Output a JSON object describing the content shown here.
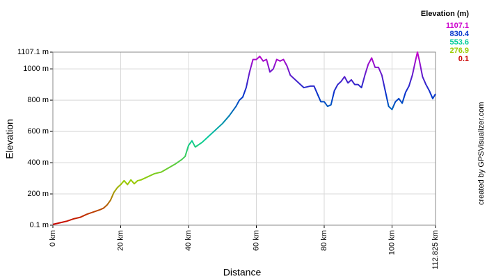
{
  "chart_data": {
    "type": "line",
    "xlabel": "Distance",
    "ylabel": "Elevation",
    "credit": "created by GPSVisualizer.com",
    "legend_title": "Elevation (m)",
    "legend": [
      {
        "value": 1107.1,
        "color": "#cc00cc"
      },
      {
        "value": 830.4,
        "color": "#0033cc"
      },
      {
        "value": 553.6,
        "color": "#00cc99"
      },
      {
        "value": 276.9,
        "color": "#99cc00"
      },
      {
        "value": 0.1,
        "color": "#cc0000"
      }
    ],
    "xlim": [
      0,
      112.825
    ],
    "ylim": [
      0.1,
      1107.1
    ],
    "xticks": [
      {
        "value": 0,
        "label": "0 km"
      },
      {
        "value": 20,
        "label": "20 km"
      },
      {
        "value": 40,
        "label": "40 km"
      },
      {
        "value": 60,
        "label": "60 km"
      },
      {
        "value": 80,
        "label": "80 km"
      },
      {
        "value": 100,
        "label": "100 km"
      },
      {
        "value": 112.825,
        "label": "112.825 km"
      }
    ],
    "yticks": [
      {
        "value": 0.1,
        "label": "0.1 m"
      },
      {
        "value": 200,
        "label": "200 m"
      },
      {
        "value": 400,
        "label": "400 m"
      },
      {
        "value": 600,
        "label": "600 m"
      },
      {
        "value": 800,
        "label": "800 m"
      },
      {
        "value": 1000,
        "label": "1000 m"
      },
      {
        "value": 1107.1,
        "label": "1107.1 m"
      }
    ],
    "grid": true,
    "x": [
      0,
      2,
      4,
      6,
      8,
      10,
      12,
      14,
      15,
      16,
      17,
      18,
      19,
      20,
      21,
      22,
      23,
      24,
      25,
      26,
      28,
      30,
      32,
      34,
      36,
      38,
      39,
      40,
      41,
      42,
      44,
      46,
      48,
      50,
      52,
      54,
      55,
      56,
      57,
      58,
      59,
      60,
      61,
      62,
      63,
      64,
      65,
      66,
      67,
      68,
      69,
      70,
      72,
      74,
      76,
      77,
      78,
      79,
      80,
      81,
      82,
      83,
      84,
      85,
      86,
      87,
      88,
      89,
      90,
      91,
      92,
      93,
      94,
      95,
      96,
      97,
      98,
      99,
      100,
      101,
      102,
      103,
      104,
      105,
      106,
      107,
      107.5,
      108,
      109,
      110,
      111,
      112,
      112.825
    ],
    "values": [
      5,
      15,
      25,
      40,
      50,
      70,
      85,
      100,
      110,
      130,
      160,
      210,
      240,
      260,
      285,
      260,
      290,
      265,
      285,
      290,
      310,
      330,
      340,
      365,
      390,
      420,
      440,
      510,
      540,
      500,
      530,
      570,
      610,
      650,
      700,
      760,
      800,
      820,
      880,
      980,
      1060,
      1060,
      1080,
      1050,
      1060,
      980,
      1000,
      1060,
      1050,
      1060,
      1020,
      960,
      920,
      880,
      890,
      890,
      840,
      790,
      790,
      760,
      770,
      860,
      900,
      920,
      950,
      910,
      930,
      900,
      900,
      880,
      960,
      1030,
      1070,
      1010,
      1010,
      960,
      860,
      760,
      740,
      790,
      810,
      780,
      850,
      890,
      960,
      1060,
      1107,
      1060,
      950,
      900,
      860,
      810,
      840
    ]
  }
}
